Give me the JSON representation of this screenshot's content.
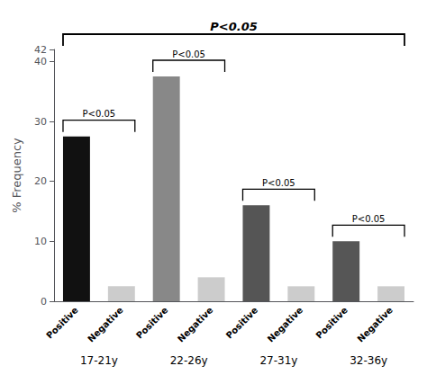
{
  "chart_data": {
    "type": "bar",
    "ylabel": "% Frequency",
    "categories": [
      "17-21y",
      "22-26y",
      "27-31y",
      "32-36y"
    ],
    "series": [
      {
        "name": "Positive",
        "colors": [
          "#111111",
          "#888888",
          "#555555",
          "#565656"
        ],
        "values": [
          27.5,
          37.5,
          16.0,
          10.0
        ]
      },
      {
        "name": "Negative",
        "color": "#cccccc",
        "values": [
          2.5,
          4.0,
          2.5,
          2.5
        ]
      }
    ],
    "ylim": [
      0,
      42
    ],
    "yticks": [
      0,
      10,
      20,
      30,
      40
    ],
    "grid": false,
    "annotations": [
      "P<0.05",
      "P<0.05",
      "P<0.05",
      "P<0.05",
      "P<0.05"
    ]
  }
}
